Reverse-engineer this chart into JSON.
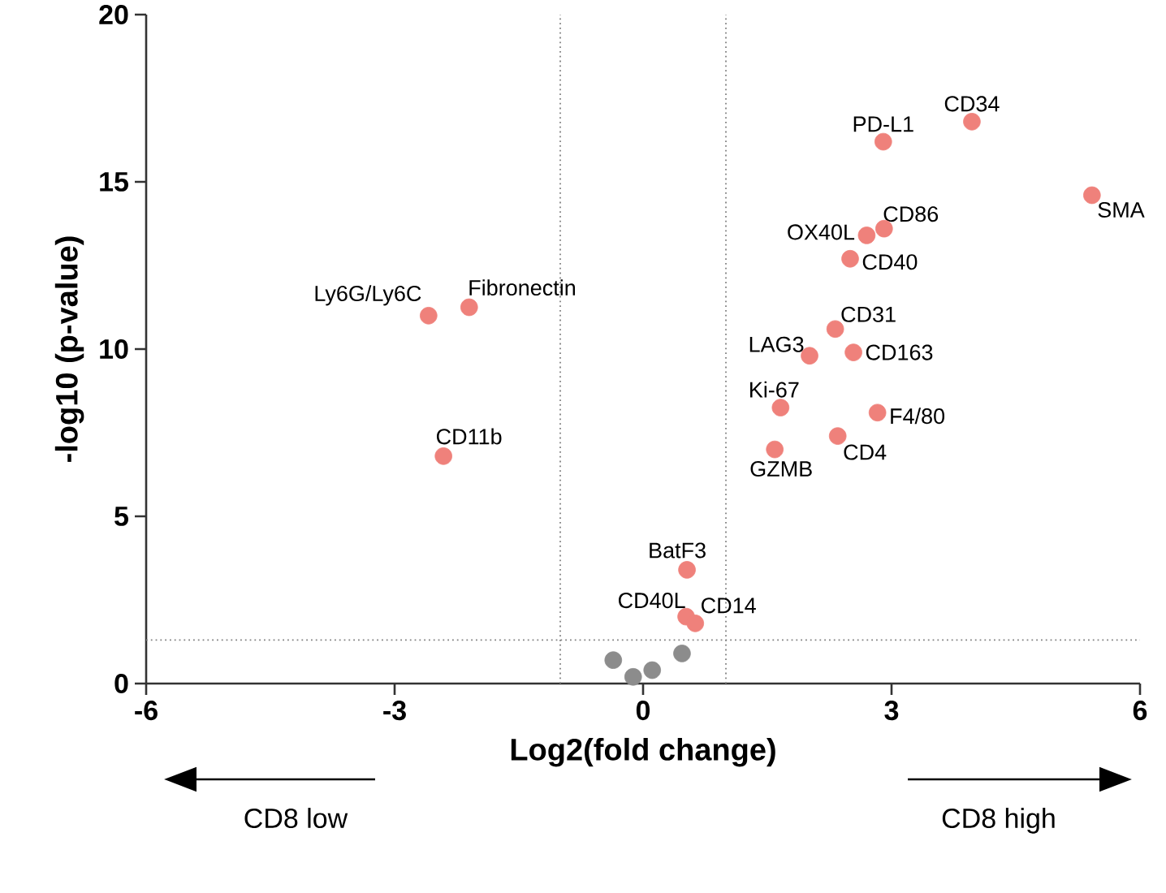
{
  "chart_data": {
    "type": "scatter",
    "xlabel": "Log2(fold change)",
    "ylabel": "-log10 (p-value)",
    "series": [
      {
        "color": "#ef817b",
        "x": [
          3.97,
          2.9,
          5.42,
          2.91,
          2.7,
          2.5,
          2.32,
          2.01,
          2.54,
          1.66,
          2.83,
          2.35,
          1.59,
          0.53,
          0.52,
          0.63,
          -2.59,
          -2.1,
          -2.41
        ],
        "values": [
          16.8,
          16.2,
          14.6,
          13.6,
          13.4,
          12.7,
          10.6,
          9.8,
          9.9,
          8.25,
          8.1,
          7.4,
          7.0,
          3.4,
          2.0,
          1.8,
          11.0,
          11.25,
          6.8
        ]
      },
      {
        "color": "#8c8c8c",
        "x": [
          -0.36,
          -0.12,
          0.11,
          0.47
        ],
        "values": [
          0.7,
          0.2,
          0.4,
          0.9
        ]
      }
    ],
    "marker": "circle",
    "xlim": [
      -6,
      6
    ],
    "xticks": [
      -6,
      -3,
      0,
      3,
      6
    ],
    "ylim": [
      0,
      20
    ],
    "yticks": [
      0,
      5,
      10,
      15,
      20
    ],
    "grid": false,
    "ref_lines": [
      {
        "axis": "x",
        "value": -1,
        "color": "#808080",
        "line_style": "dotted"
      },
      {
        "axis": "x",
        "value": 1,
        "color": "#808080",
        "line_style": "dotted"
      },
      {
        "axis": "y",
        "value": 1.3,
        "color": "#808080",
        "line_style": "dotted"
      }
    ],
    "annotations": [
      {
        "text": "CD34",
        "x": 3.97,
        "y": 16.8
      },
      {
        "text": "PD-L1",
        "x": 2.9,
        "y": 16.2
      },
      {
        "text": "SMA",
        "x": 5.42,
        "y": 14.6
      },
      {
        "text": "CD86",
        "x": 2.91,
        "y": 13.6
      },
      {
        "text": "OX40L",
        "x": 2.7,
        "y": 13.4
      },
      {
        "text": "CD40",
        "x": 2.5,
        "y": 12.7
      },
      {
        "text": "CD31",
        "x": 2.32,
        "y": 10.6
      },
      {
        "text": "LAG3",
        "x": 2.01,
        "y": 9.8
      },
      {
        "text": "CD163",
        "x": 2.54,
        "y": 9.9
      },
      {
        "text": "Ki-67",
        "x": 1.66,
        "y": 8.25
      },
      {
        "text": "F4/80",
        "x": 2.83,
        "y": 8.1
      },
      {
        "text": "CD4",
        "x": 2.35,
        "y": 7.4
      },
      {
        "text": "GZMB",
        "x": 1.59,
        "y": 7.0
      },
      {
        "text": "BatF3",
        "x": 0.53,
        "y": 3.4
      },
      {
        "text": "CD40L",
        "x": 0.52,
        "y": 2.0
      },
      {
        "text": "CD14",
        "x": 0.63,
        "y": 1.8
      },
      {
        "text": "Ly6G/Ly6C",
        "x": -2.59,
        "y": 11.0
      },
      {
        "text": "Fibronectin",
        "x": -2.1,
        "y": 11.25
      },
      {
        "text": "CD11b",
        "x": -2.41,
        "y": 6.8
      },
      "CD8 low",
      "CD8 high"
    ]
  }
}
